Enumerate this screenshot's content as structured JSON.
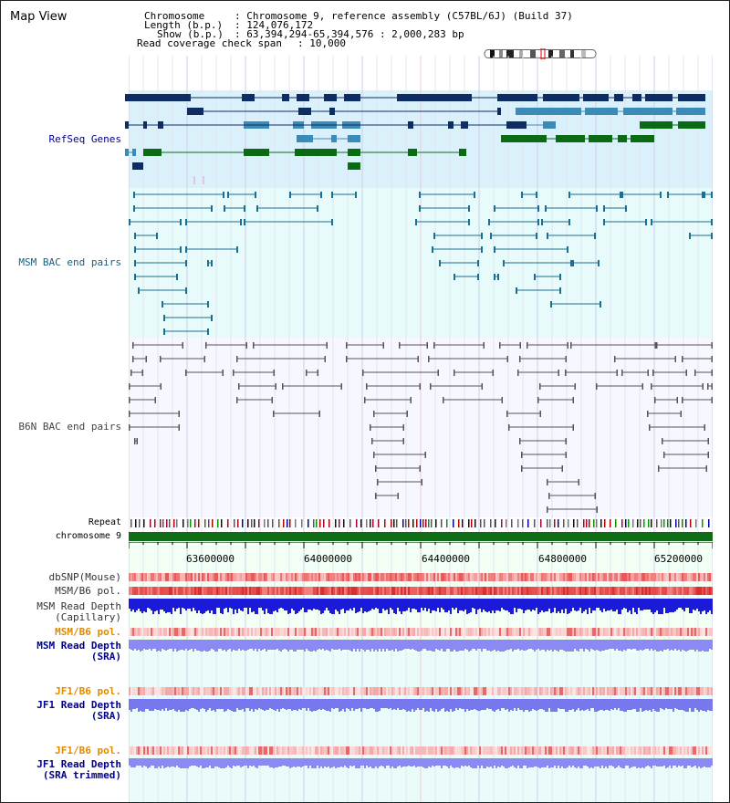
{
  "title": "Map View",
  "info": {
    "chromosome_label": "Chromosome",
    "chromosome_value": ": Chromosome 9, reference assembly (C57BL/6J) (Build 37)",
    "length_label": "Length (b.p.)",
    "length_value": ": 124,076,172",
    "show_label": "Show (b.p.)",
    "show_value": ": 63,394,294-65,394,576 : 2,000,283 bp",
    "coverage_label": "Read coverage check span",
    "coverage_value": ": 10,000"
  },
  "tracks": {
    "refseq": "RefSeq Genes",
    "msm_bac": "MSM BAC end pairs",
    "b6n_bac": "B6N BAC end pairs",
    "repeat": "Repeat",
    "chromosome": "chromosome 9",
    "dbsnp": "dbSNP(Mouse)",
    "msm_b6_pol_1": "MSM/B6 pol.",
    "msm_depth_cap_1": "MSM Read Depth",
    "msm_depth_cap_2": "(Capillary)",
    "msm_b6_pol_2": "MSM/B6 pol.",
    "msm_depth_sra_1": "MSM Read Depth",
    "msm_depth_sra_2": "(SRA)",
    "jf1_pol_1": "JF1/B6 pol.",
    "jf1_depth_1": "JF1 Read Depth",
    "jf1_depth_2": "(SRA)",
    "jf1_pol_2": "JF1/B6 pol.",
    "jf1_trim_1": "JF1 Read Depth",
    "jf1_trim_2": "(SRA trimmed)"
  },
  "axis": {
    "ticks": [
      "63600000",
      "64000000",
      "64400000",
      "64800000",
      "65200000"
    ]
  },
  "colors": {
    "refseq_bg": "#daf1fb",
    "msm_bg": "#e7fbfb",
    "b6n_bg": "#f7f7ff",
    "gene_dark": "#0d2d63",
    "gene_mid": "#3b8ab7",
    "gene_green": "#0b6b14",
    "msm_pair": "#1b6f92",
    "b6n_pair": "#555555",
    "chrom_bar": "#0e6c14",
    "depth_blue": "#1a1ad8",
    "depth_light": "#8a8af2",
    "label_navy": "#00008b",
    "label_orange": "#e08a00"
  }
}
